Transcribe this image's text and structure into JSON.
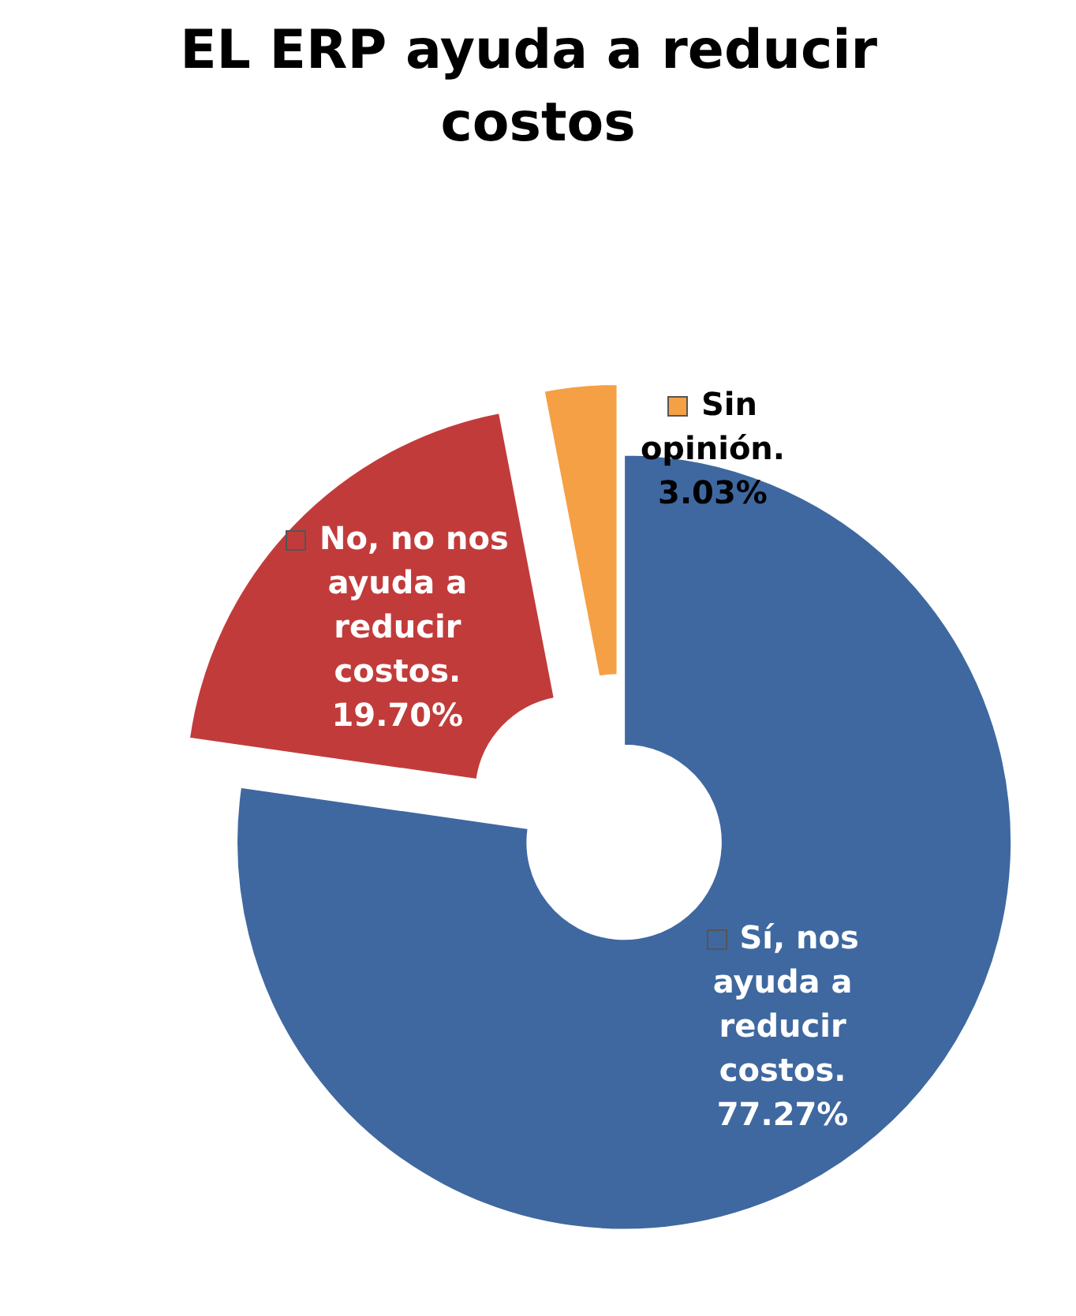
{
  "chart_data": {
    "type": "donut",
    "title": "EL ERP ayuda a reducir costos",
    "categories": [
      "Sí, nos ayuda a reducir costos.",
      "No, no nos ayuda a reducir costos.",
      "Sin opinión."
    ],
    "values": [
      77.27,
      19.7,
      3.03
    ],
    "value_labels": [
      "77.27%",
      "19.70%",
      "3.03%"
    ],
    "colors": [
      "#3f68a0",
      "#c23b3b",
      "#f5a044"
    ],
    "legend": "center"
  }
}
